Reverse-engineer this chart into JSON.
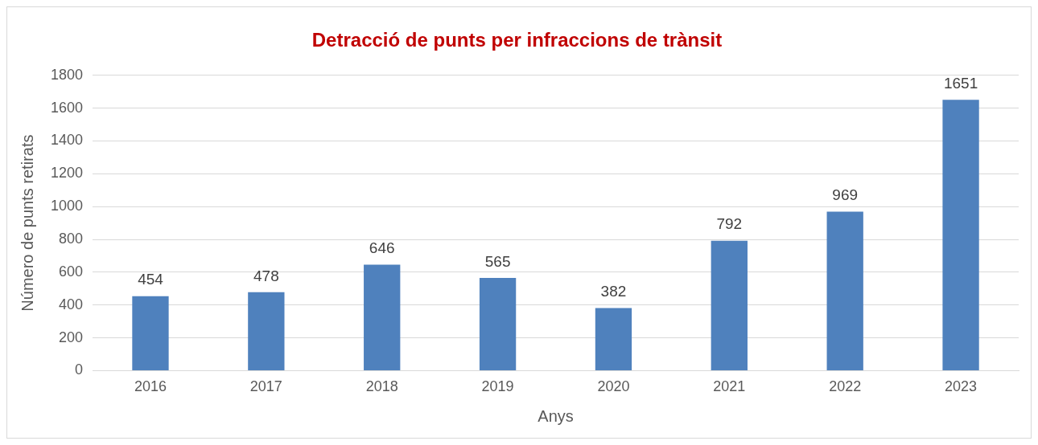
{
  "chart_data": {
    "type": "bar",
    "title": "Detracció de punts per infraccions de trànsit",
    "xlabel": "Anys",
    "ylabel": "Número de punts retirats",
    "categories": [
      "2016",
      "2017",
      "2018",
      "2019",
      "2020",
      "2021",
      "2022",
      "2023"
    ],
    "values": [
      454,
      478,
      646,
      565,
      382,
      792,
      969,
      1651
    ],
    "color": "#4f81bd",
    "ylim": [
      0,
      1800
    ],
    "yticks": [
      0,
      200,
      400,
      600,
      800,
      1000,
      1200,
      1400,
      1600,
      1800
    ],
    "grid": "y",
    "legend": false,
    "data_labels": true
  }
}
